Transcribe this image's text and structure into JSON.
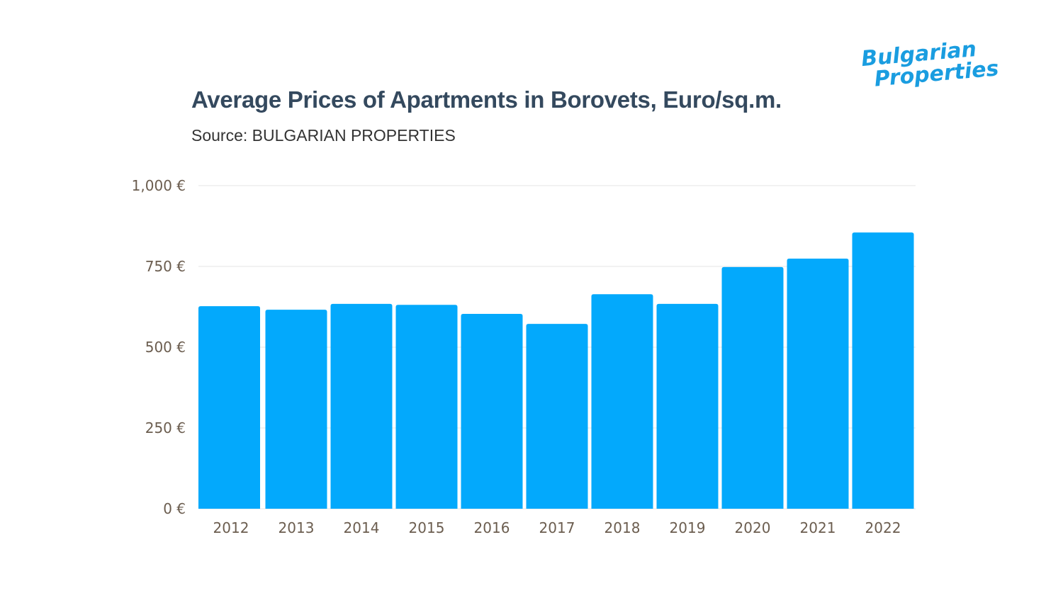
{
  "logo": {
    "line1": "Bulgarian",
    "line2": "Properties",
    "color": "#1a9de0"
  },
  "chart_data": {
    "type": "bar",
    "title": "Average Prices of Apartments in Borovets, Euro/sq.m.",
    "subtitle": "Source: BULGARIAN PROPERTIES",
    "categories": [
      "2012",
      "2013",
      "2014",
      "2015",
      "2016",
      "2017",
      "2018",
      "2019",
      "2020",
      "2021",
      "2022"
    ],
    "values": [
      627,
      616,
      634,
      631,
      603,
      572,
      664,
      634,
      748,
      774,
      855
    ],
    "ylim": [
      0,
      1000
    ],
    "yticks": [
      0,
      250,
      500,
      750,
      1000
    ],
    "ytick_labels": [
      "0 €",
      "250 €",
      "500 €",
      "750 €",
      "1,000 €"
    ],
    "xlabel": "",
    "ylabel": "",
    "grid": true,
    "bar_color": "#03a9fc"
  }
}
